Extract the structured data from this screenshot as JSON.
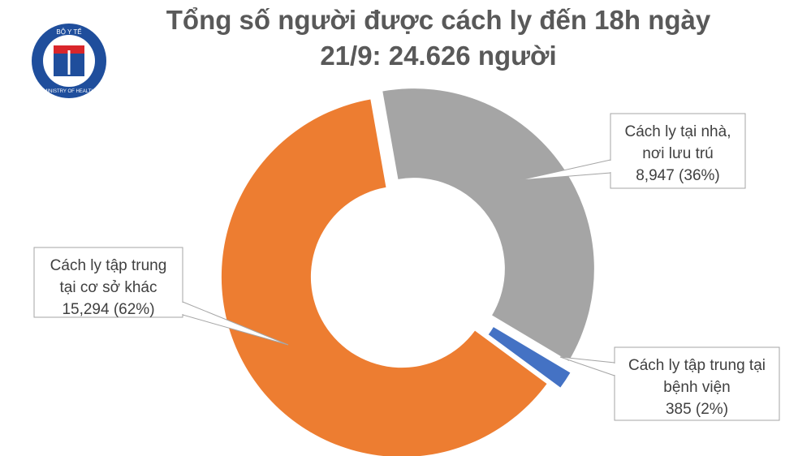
{
  "logo": {
    "top": "BỘ Y TẾ",
    "bottom": "MINISTRY OF HEALTH"
  },
  "chart_data": {
    "type": "donut",
    "title": [
      "Tổng số người được cách ly đến 18h ngày",
      "21/9: 24.626 người"
    ],
    "categories": [
      [
        "Cách ly tại nhà,",
        "nơi lưu trú"
      ],
      [
        "Cách ly tập trung tại",
        "bệnh viện"
      ],
      [
        "Cách ly tập trung",
        "tại cơ sở khác"
      ]
    ],
    "values": [
      8947,
      385,
      15294
    ],
    "value_labels": [
      "8,947 (36%)",
      "385 (2%)",
      "15,294 (62%)"
    ],
    "colors": [
      "#a5a5a5",
      "#4472c4",
      "#ed7d31"
    ]
  }
}
